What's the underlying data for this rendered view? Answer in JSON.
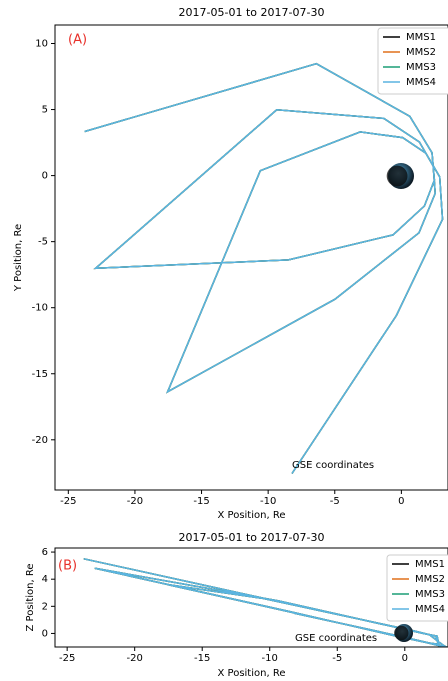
{
  "chart_data": [
    {
      "type": "line",
      "title": "2017-05-01 to 2017-07-30",
      "annotation": "(A)",
      "note": "GSE coordinates",
      "x_label": "X Position, Re",
      "y_label": "Y Position, Re",
      "xlim": [
        -26.0,
        3.5
      ],
      "ylim": [
        -23.8,
        11.4
      ],
      "xticks": [
        -25,
        -20,
        -15,
        -10,
        -5,
        0
      ],
      "yticks": [
        10,
        5,
        0,
        -5,
        -10,
        -15,
        -20
      ],
      "legend": "upper right",
      "x": [
        -23.77,
        -6.38,
        0.63,
        2.3,
        2.48,
        1.73,
        -0.63,
        -8.47,
        -22.95,
        -9.36,
        -1.32,
        1.35,
        2.39,
        2.54,
        1.32,
        -4.98,
        -17.55,
        -10.59,
        -3.09,
        0.1,
        1.83,
        2.88,
        3.09,
        -0.37,
        -8.21
      ],
      "series": [
        {
          "name": "MMS1",
          "color": "#000000",
          "values": [
            3.34,
            8.47,
            4.49,
            1.73,
            -0.35,
            -2.3,
            -4.49,
            -6.38,
            -7.02,
            4.98,
            4.33,
            2.54,
            0.73,
            -1.35,
            -4.33,
            -9.36,
            -16.37,
            0.37,
            3.31,
            2.88,
            1.7,
            -0.1,
            -3.31,
            -10.59,
            -22.55
          ]
        },
        {
          "name": "MMS2",
          "color": "#e0711c",
          "values": [
            3.34,
            8.47,
            4.49,
            1.73,
            -0.35,
            -2.3,
            -4.49,
            -6.38,
            -7.02,
            4.98,
            4.33,
            2.54,
            0.73,
            -1.35,
            -4.33,
            -9.36,
            -16.37,
            0.37,
            3.31,
            2.88,
            1.7,
            -0.1,
            -3.31,
            -10.59,
            -22.55
          ]
        },
        {
          "name": "MMS3",
          "color": "#1b9e77",
          "values": [
            3.34,
            8.47,
            4.49,
            1.73,
            -0.35,
            -2.3,
            -4.49,
            -6.38,
            -7.02,
            4.98,
            4.33,
            2.54,
            0.73,
            -1.35,
            -4.33,
            -9.36,
            -16.37,
            0.37,
            3.31,
            2.88,
            1.7,
            -0.1,
            -3.31,
            -10.59,
            -22.55
          ]
        },
        {
          "name": "MMS4",
          "color": "#5ab4e0",
          "values": [
            3.34,
            8.47,
            4.49,
            1.73,
            -0.35,
            -2.3,
            -4.49,
            -6.38,
            -7.02,
            4.98,
            4.33,
            2.54,
            0.73,
            -1.35,
            -4.33,
            -9.36,
            -16.37,
            0.37,
            3.31,
            2.88,
            1.7,
            -0.1,
            -3.31,
            -10.59,
            -22.55
          ]
        }
      ]
    },
    {
      "type": "line",
      "title": "2017-05-01 to 2017-07-30",
      "annotation": "(B)",
      "note": "GSE coordinates",
      "x_label": "X Position, Re",
      "y_label": "Z Position, Re",
      "xlim": [
        -25.9,
        3.2
      ],
      "ylim": [
        -1.0,
        6.3
      ],
      "xticks": [
        -25,
        -20,
        -15,
        -10,
        -5,
        0
      ],
      "yticks": [
        0,
        2,
        4,
        6
      ],
      "legend": "upper right",
      "x": [
        -23.77,
        -6.38,
        0.63,
        2.3,
        2.48,
        1.73,
        -0.63,
        -8.47,
        -22.95,
        -9.36,
        -1.32,
        1.35,
        2.39,
        2.54,
        1.32,
        -4.98,
        -17.55,
        -10.59,
        -3.09,
        0.1,
        1.83,
        2.88,
        3.09,
        -0.37,
        -8.21
      ],
      "series": [
        {
          "name": "MMS1",
          "color": "#000000",
          "values": [
            5.5,
            1.7,
            0.2,
            -0.2,
            -0.8,
            -0.7,
            -0.2,
            1.6,
            4.8,
            2.4,
            0.6,
            0.0,
            -0.2,
            -0.9,
            -0.6,
            0.8,
            3.6,
            2.6,
            1.0,
            0.3,
            -0.1,
            -0.9,
            -1.0,
            -0.2,
            1.5
          ]
        },
        {
          "name": "MMS2",
          "color": "#e0711c",
          "values": [
            5.5,
            1.7,
            0.2,
            -0.2,
            -0.8,
            -0.7,
            -0.2,
            1.6,
            4.8,
            2.4,
            0.6,
            0.0,
            -0.2,
            -0.9,
            -0.6,
            0.8,
            3.6,
            2.6,
            1.0,
            0.3,
            -0.1,
            -0.9,
            -1.0,
            -0.2,
            1.5
          ]
        },
        {
          "name": "MMS3",
          "color": "#1b9e77",
          "values": [
            5.5,
            1.7,
            0.2,
            -0.2,
            -0.8,
            -0.7,
            -0.2,
            1.6,
            4.8,
            2.4,
            0.6,
            0.0,
            -0.2,
            -0.9,
            -0.6,
            0.8,
            3.6,
            2.6,
            1.0,
            0.3,
            -0.1,
            -0.9,
            -1.0,
            -0.2,
            1.5
          ]
        },
        {
          "name": "MMS4",
          "color": "#5ab4e0",
          "values": [
            5.5,
            1.7,
            0.2,
            -0.2,
            -0.8,
            -0.7,
            -0.2,
            1.6,
            4.8,
            2.4,
            0.6,
            0.0,
            -0.2,
            -0.9,
            -0.6,
            0.8,
            3.6,
            2.6,
            1.0,
            0.3,
            -0.1,
            -0.9,
            -1.0,
            -0.2,
            1.5
          ]
        }
      ]
    }
  ]
}
